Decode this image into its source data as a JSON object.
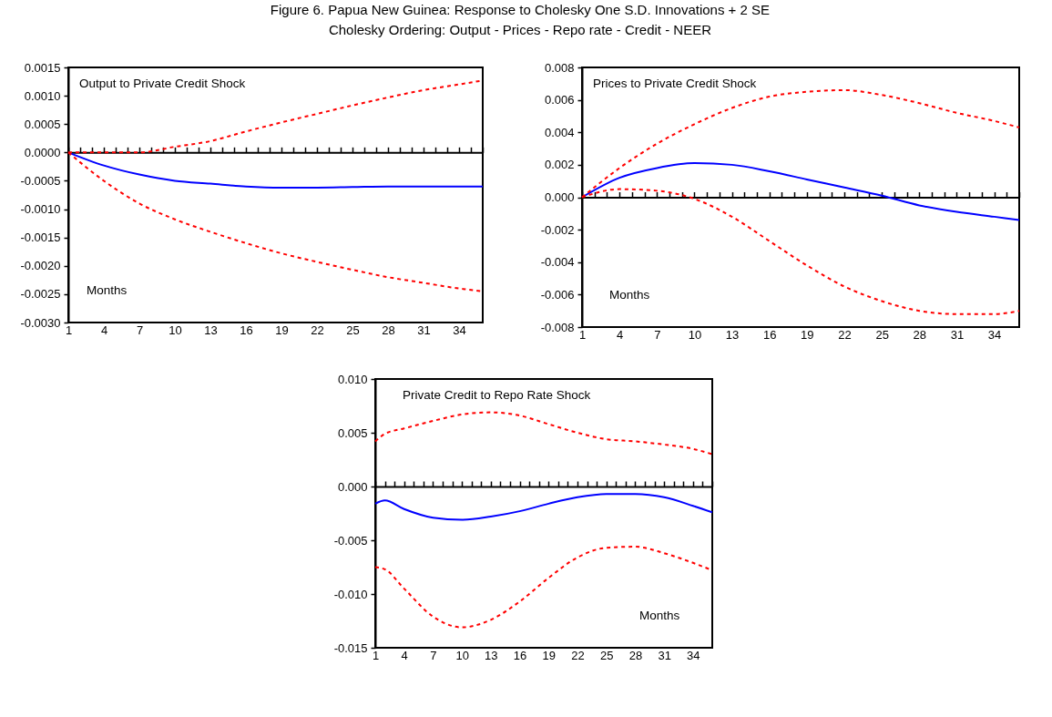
{
  "chart_data": [
    {
      "type": "line",
      "title": "Output to Private Credit Shock",
      "annotations": [
        "Figure 6. Papua New Guinea: Response to Cholesky One S.D. Innovations + 2 SE",
        "Cholesky Ordering: Output - Prices - Repo rate - Credit - NEER",
        "Months"
      ],
      "x": [
        1,
        4,
        7,
        10,
        13,
        16,
        19,
        22,
        25,
        28,
        31,
        34,
        36
      ],
      "series": [
        {
          "color": "#0000ff",
          "line_style": "solid",
          "values": [
            0,
            -0.00023,
            -0.00039,
            -0.0005,
            -0.00055,
            -0.0006,
            -0.00062,
            -0.00062,
            -0.00061,
            -0.0006,
            -0.0006,
            -0.0006,
            -0.0006
          ]
        },
        {
          "color": "#ff0000",
          "line_style": "dashed",
          "values": [
            0,
            0,
            0,
            0.0001,
            0.0002,
            0.00037,
            0.00053,
            0.00068,
            0.00083,
            0.00097,
            0.0011,
            0.0012,
            0.00127
          ]
        },
        {
          "color": "#ff0000",
          "line_style": "dashed",
          "values": [
            0,
            -0.0005,
            -0.0009,
            -0.00118,
            -0.0014,
            -0.0016,
            -0.00178,
            -0.00193,
            -0.00207,
            -0.0022,
            -0.0023,
            -0.0024,
            -0.00245
          ]
        }
      ],
      "xlim": [
        1,
        36
      ],
      "xticks": [
        1,
        {
          "value": 2,
          "label": null
        },
        {
          "value": 3,
          "label": null
        },
        4,
        {
          "value": 5,
          "label": null
        },
        {
          "value": 6,
          "label": null
        },
        7,
        {
          "value": 8,
          "label": null
        },
        {
          "value": 9,
          "label": null
        },
        10,
        {
          "value": 11,
          "label": null
        },
        {
          "value": 12,
          "label": null
        },
        13,
        {
          "value": 14,
          "label": null
        },
        {
          "value": 15,
          "label": null
        },
        16,
        {
          "value": 17,
          "label": null
        },
        {
          "value": 18,
          "label": null
        },
        19,
        {
          "value": 20,
          "label": null
        },
        {
          "value": 21,
          "label": null
        },
        22,
        {
          "value": 23,
          "label": null
        },
        {
          "value": 24,
          "label": null
        },
        25,
        {
          "value": 26,
          "label": null
        },
        {
          "value": 27,
          "label": null
        },
        28,
        {
          "value": 29,
          "label": null
        },
        {
          "value": 30,
          "label": null
        },
        31,
        {
          "value": 32,
          "label": null
        },
        {
          "value": 33,
          "label": null
        },
        34,
        {
          "value": 35,
          "label": null
        },
        {
          "value": 36,
          "label": null
        }
      ],
      "ylim": [
        -0.003,
        0.0015
      ],
      "yticks": [
        {
          "value": -0.003,
          "label": "-0.0030"
        },
        {
          "value": -0.0025,
          "label": "-0.0025"
        },
        {
          "value": -0.002,
          "label": "-0.0020"
        },
        {
          "value": -0.0015,
          "label": "-0.0015"
        },
        {
          "value": -0.001,
          "label": "-0.0010"
        },
        {
          "value": -0.0005,
          "label": "-0.0005"
        },
        {
          "value": 0,
          "label": "0.0000"
        },
        {
          "value": 0.0005,
          "label": "0.0005"
        },
        {
          "value": 0.001,
          "label": "0.0010"
        },
        {
          "value": 0.0015,
          "label": "0.0015"
        }
      ]
    },
    {
      "type": "line",
      "title": "Prices to Private Credit Shock",
      "annotations": [
        "Months"
      ],
      "x": [
        1,
        4,
        7,
        10,
        13,
        16,
        19,
        22,
        25,
        28,
        31,
        34,
        36
      ],
      "series": [
        {
          "color": "#0000ff",
          "line_style": "solid",
          "values": [
            0,
            0.0012,
            0.0018,
            0.0021,
            0.002,
            0.0016,
            0.0011,
            0.0006,
            0.0001,
            -0.0005,
            -0.0009,
            -0.0012,
            -0.0014
          ]
        },
        {
          "color": "#ff0000",
          "line_style": "dashed",
          "values": [
            0,
            0.0018,
            0.0033,
            0.0045,
            0.0055,
            0.0062,
            0.0065,
            0.0066,
            0.0063,
            0.0058,
            0.0052,
            0.0047,
            0.0043
          ]
        },
        {
          "color": "#ff0000",
          "line_style": "dashed",
          "values": [
            0,
            0.0005,
            0.0004,
            -0.0001,
            -0.0012,
            -0.0027,
            -0.0042,
            -0.0055,
            -0.0064,
            -0.007,
            -0.0072,
            -0.0072,
            -0.007
          ]
        }
      ],
      "xlim": [
        1,
        36
      ],
      "xticks": [
        1,
        {
          "value": 2,
          "label": null
        },
        {
          "value": 3,
          "label": null
        },
        4,
        {
          "value": 5,
          "label": null
        },
        {
          "value": 6,
          "label": null
        },
        7,
        {
          "value": 8,
          "label": null
        },
        {
          "value": 9,
          "label": null
        },
        10,
        {
          "value": 11,
          "label": null
        },
        {
          "value": 12,
          "label": null
        },
        13,
        {
          "value": 14,
          "label": null
        },
        {
          "value": 15,
          "label": null
        },
        16,
        {
          "value": 17,
          "label": null
        },
        {
          "value": 18,
          "label": null
        },
        19,
        {
          "value": 20,
          "label": null
        },
        {
          "value": 21,
          "label": null
        },
        22,
        {
          "value": 23,
          "label": null
        },
        {
          "value": 24,
          "label": null
        },
        25,
        {
          "value": 26,
          "label": null
        },
        {
          "value": 27,
          "label": null
        },
        28,
        {
          "value": 29,
          "label": null
        },
        {
          "value": 30,
          "label": null
        },
        31,
        {
          "value": 32,
          "label": null
        },
        {
          "value": 33,
          "label": null
        },
        34,
        {
          "value": 35,
          "label": null
        },
        {
          "value": 36,
          "label": null
        }
      ],
      "ylim": [
        -0.008,
        0.008
      ],
      "yticks": [
        {
          "value": -0.008,
          "label": "-0.008"
        },
        {
          "value": -0.006,
          "label": "-0.006"
        },
        {
          "value": -0.004,
          "label": "-0.004"
        },
        {
          "value": -0.002,
          "label": "-0.002"
        },
        {
          "value": 0,
          "label": "0.000"
        },
        {
          "value": 0.002,
          "label": "0.002"
        },
        {
          "value": 0.004,
          "label": "0.004"
        },
        {
          "value": 0.006,
          "label": "0.006"
        },
        {
          "value": 0.008,
          "label": "0.008"
        }
      ]
    },
    {
      "type": "line",
      "title": "Private Credit to Repo Rate Shock",
      "annotations": [
        "Months"
      ],
      "x": [
        1,
        2,
        4,
        7,
        10,
        13,
        16,
        19,
        22,
        25,
        28,
        31,
        34,
        36
      ],
      "series": [
        {
          "color": "#0000ff",
          "line_style": "solid",
          "values": [
            -0.0016,
            -0.0013,
            -0.0021,
            -0.0029,
            -0.0031,
            -0.0028,
            -0.0023,
            -0.0016,
            -0.001,
            -0.0007,
            -0.0007,
            -0.001,
            -0.0018,
            -0.0024
          ]
        },
        {
          "color": "#ff0000",
          "line_style": "dashed",
          "values": [
            0.0042,
            0.0049,
            0.0054,
            0.0061,
            0.0067,
            0.0069,
            0.0066,
            0.0058,
            0.005,
            0.0044,
            0.0042,
            0.0039,
            0.0035,
            0.003
          ]
        },
        {
          "color": "#ff0000",
          "line_style": "dashed",
          "values": [
            -0.0075,
            -0.0077,
            -0.0095,
            -0.0121,
            -0.0131,
            -0.0124,
            -0.0107,
            -0.0085,
            -0.0066,
            -0.0057,
            -0.0056,
            -0.0062,
            -0.0071,
            -0.0078
          ]
        }
      ],
      "xlim": [
        1,
        36
      ],
      "xticks": [
        1,
        {
          "value": 2,
          "label": null
        },
        {
          "value": 3,
          "label": null
        },
        4,
        {
          "value": 5,
          "label": null
        },
        {
          "value": 6,
          "label": null
        },
        7,
        {
          "value": 8,
          "label": null
        },
        {
          "value": 9,
          "label": null
        },
        10,
        {
          "value": 11,
          "label": null
        },
        {
          "value": 12,
          "label": null
        },
        13,
        {
          "value": 14,
          "label": null
        },
        {
          "value": 15,
          "label": null
        },
        16,
        {
          "value": 17,
          "label": null
        },
        {
          "value": 18,
          "label": null
        },
        19,
        {
          "value": 20,
          "label": null
        },
        {
          "value": 21,
          "label": null
        },
        22,
        {
          "value": 23,
          "label": null
        },
        {
          "value": 24,
          "label": null
        },
        25,
        {
          "value": 26,
          "label": null
        },
        {
          "value": 27,
          "label": null
        },
        28,
        {
          "value": 29,
          "label": null
        },
        {
          "value": 30,
          "label": null
        },
        31,
        {
          "value": 32,
          "label": null
        },
        {
          "value": 33,
          "label": null
        },
        34,
        {
          "value": 35,
          "label": null
        },
        {
          "value": 36,
          "label": null
        }
      ],
      "ylim": [
        -0.015,
        0.01
      ],
      "yticks": [
        {
          "value": -0.015,
          "label": "-0.015"
        },
        {
          "value": -0.01,
          "label": "-0.010"
        },
        {
          "value": -0.005,
          "label": "-0.005"
        },
        {
          "value": 0,
          "label": "0.000"
        },
        {
          "value": 0.005,
          "label": "0.005"
        },
        {
          "value": 0.01,
          "label": "0.010"
        }
      ]
    }
  ]
}
